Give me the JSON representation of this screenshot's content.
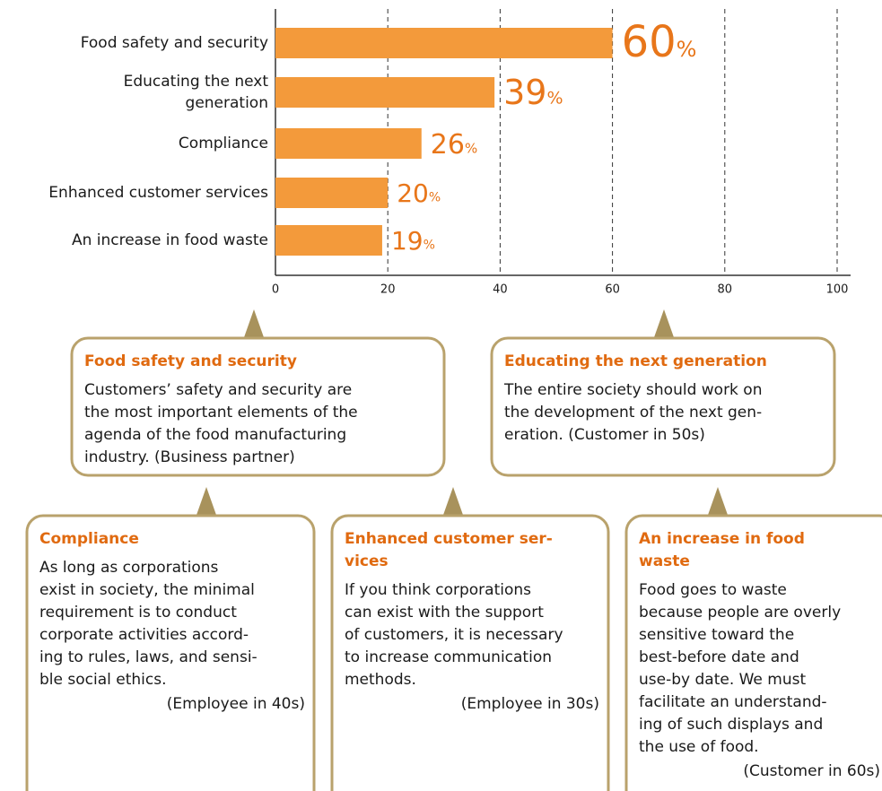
{
  "chart_data": {
    "type": "bar",
    "orientation": "horizontal",
    "categories": [
      [
        "Food safety and security"
      ],
      [
        "Educating the next",
        "generation"
      ],
      [
        "Compliance"
      ],
      [
        "Enhanced customer services"
      ],
      [
        "An increase in food waste"
      ]
    ],
    "values": [
      60,
      39,
      26,
      20,
      19
    ],
    "value_labels": [
      "60%",
      "39%",
      "26%",
      "20%",
      "19%"
    ],
    "color": "#f39a3b",
    "xlim": [
      0,
      100
    ],
    "xticks": [
      0,
      20,
      40,
      60,
      80,
      100
    ],
    "grid": true
  },
  "comments": [
    {
      "title": [
        "Food safety and security"
      ],
      "body": [
        "Customers’ safety and security are",
        "the most important elements of the",
        "agenda of the food manufacturing",
        "industry. (Business partner)"
      ]
    },
    {
      "title": [
        "Educating the next generation"
      ],
      "body": [
        "The entire society should work on",
        "the development of the next gen-",
        "eration. (Customer in 50s)"
      ]
    },
    {
      "title": [
        "Compliance"
      ],
      "body": [
        "As long as corporations",
        "exist in society, the minimal",
        "requirement is to conduct",
        "corporate activities accord-",
        "ing to rules, laws, and sensi-",
        "ble social ethics."
      ],
      "attribution": "(Employee in 40s)"
    },
    {
      "title": [
        "Enhanced customer ser-",
        "vices"
      ],
      "body": [
        "If you think corporations",
        "can exist with the support",
        "of customers, it is necessary",
        "to increase communication",
        "methods."
      ],
      "attribution": "(Employee in 30s)"
    },
    {
      "title": [
        "An increase in food",
        "waste"
      ],
      "body": [
        "Food goes to waste",
        "because people are overly",
        "sensitive toward the",
        "best-before date and",
        "use-by date. We must",
        "facilitate an understand-",
        "ing of such displays and",
        "the use of food."
      ],
      "attribution": "(Customer in 60s)"
    }
  ]
}
